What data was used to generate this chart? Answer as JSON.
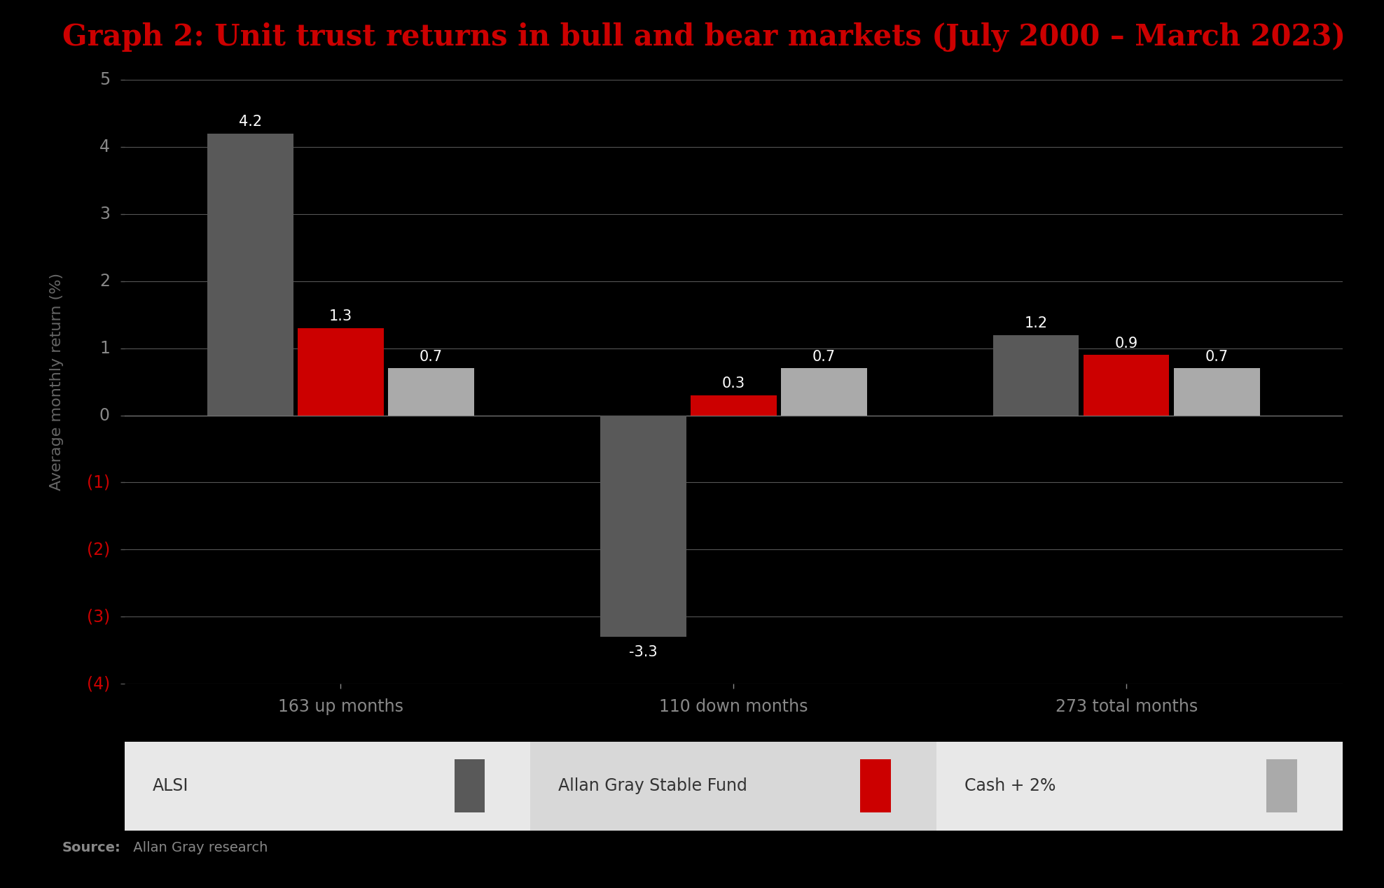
{
  "title": "Graph 2: Unit trust returns in bull and bear markets (July 2000 – March 2023)",
  "title_color": "#cc0000",
  "ylabel": "Average monthly return (%)",
  "ylabel_color": "#666666",
  "background_color": "#000000",
  "plot_background_color": "#000000",
  "legend_background_color_1": "#e8e8e8",
  "legend_background_color_2": "#d8d8d8",
  "source_text_bold": "Source:",
  "source_text_normal": " Allan Gray research",
  "categories": [
    "163 up months",
    "110 down months",
    "273 total months"
  ],
  "series": {
    "ALSI": [
      4.2,
      -3.3,
      1.2
    ],
    "Allan Gray Stable Fund": [
      1.3,
      0.3,
      0.9
    ],
    "Cash + 2%": [
      0.7,
      0.7,
      0.7
    ]
  },
  "colors": {
    "ALSI": "#595959",
    "Allan Gray Stable Fund": "#cc0000",
    "Cash + 2%": "#aaaaaa"
  },
  "ylim": [
    -4,
    5
  ],
  "yticks": [
    5,
    4,
    3,
    2,
    1,
    0,
    -1,
    -2,
    -3,
    -4
  ],
  "ytick_labels": [
    "5",
    "4",
    "3",
    "2",
    "1",
    "0",
    "(1)",
    "(2)",
    "(3)",
    "(4)"
  ],
  "ytick_color_pos": "#888888",
  "ytick_color_neg": "#cc0000",
  "grid_color": "#555555",
  "bar_width": 0.23,
  "data_label_fontsize": 15,
  "axis_label_fontsize": 16,
  "title_fontsize": 30,
  "tick_fontsize": 17,
  "legend_fontsize": 17,
  "source_fontsize": 14
}
